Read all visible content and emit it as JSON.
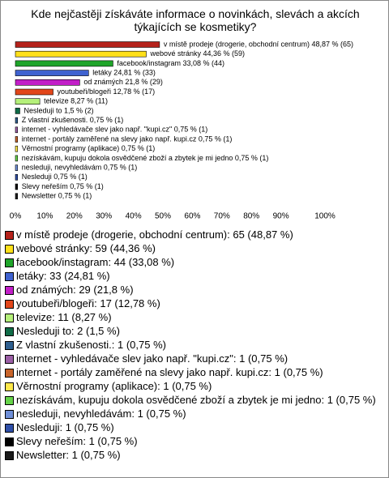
{
  "chart_data": {
    "type": "bar",
    "orientation": "horizontal",
    "title": "Kde nejčastěji získáváte informace o novinkách, slevách a akcích týkajících se kosmetiky?",
    "categories": [
      "v místě prodeje (drogerie, obchodní centrum)",
      "webové stránky",
      "facebook/instagram",
      "letáky",
      "od známých",
      "youtubeři/blogeři",
      "televize",
      "Nesleduji to",
      "Z vlastní zkušenosti.",
      "internet - vyhledávače slev jako např. \"kupi.cz\"",
      "internet - portály zaměřené na slevy jako např. kupi.cz",
      "Věrnostní programy (aplikace)",
      "nezískávám, kupuju dokola osvědčené zboží a zbytek je mi jedno",
      "nesleduji, nevyhledávám",
      "Nesleduji",
      "Slevy neřeším",
      "Newsletter"
    ],
    "values": [
      48.87,
      44.36,
      33.08,
      24.81,
      21.8,
      12.78,
      8.27,
      1.5,
      0.75,
      0.75,
      0.75,
      0.75,
      0.75,
      0.75,
      0.75,
      0.75,
      0.75
    ],
    "value_labels": [
      "v místě prodeje (drogerie, obchodní centrum) 48,87 % (65)",
      "webové stránky 44,36 % (59)",
      "facebook/instagram 33,08 % (44)",
      "letáky 24,81 % (33)",
      "od známých 21,8 % (29)",
      "youtubeři/blogeři 12,78 % (17)",
      "televize 8,27 % (11)",
      "Nesleduji to 1,5 % (2)",
      "Z vlastní zkušenosti. 0,75 % (1)",
      "internet - vyhledávače slev jako např. \"kupi.cz\" 0,75 % (1)",
      "internet - portály zaměřené na slevy jako např. kupi.cz 0,75 % (1)",
      "Věrnostní programy (aplikace) 0,75 % (1)",
      "nezískávám, kupuju dokola osvědčené zboží a zbytek je mi jedno 0,75 % (1)",
      "nesleduji, nevyhledávám 0,75 % (1)",
      "Nesleduji 0,75 % (1)",
      "Slevy neřeším 0,75 % (1)",
      "Newsletter 0,75 % (1)"
    ],
    "legend_labels": [
      "v místě prodeje (drogerie, obchodní centrum): 65 (48,87 %)",
      "webové stránky: 59 (44,36 %)",
      "facebook/instagram: 44 (33,08 %)",
      "letáky: 33 (24,81 %)",
      "od známých: 29 (21,8 %)",
      "youtubeři/blogeři: 17 (12,78 %)",
      "televize: 11 (8,27 %)",
      "Nesleduji to: 2 (1,5 %)",
      "Z vlastní zkušenosti.: 1 (0,75 %)",
      "internet - vyhledávače slev jako např. \"kupi.cz\": 1 (0,75 %)",
      "internet - portály zaměřené na slevy jako např. kupi.cz: 1 (0,75 %)",
      "Věrnostní programy (aplikace): 1 (0,75 %)",
      "nezískávám, kupuju dokola osvědčené zboží a zbytek je mi jedno: 1 (0,75 %)",
      "nesleduji, nevyhledávám: 1 (0,75 %)",
      "Nesleduji: 1 (0,75 %)",
      "Slevy neřeším: 1 (0,75 %)",
      "Newsletter: 1 (0,75 %)"
    ],
    "colors": [
      "#b5221b",
      "#ffe01a",
      "#1fa52a",
      "#3f62d0",
      "#c21fc8",
      "#e2461a",
      "#b5f07a",
      "#0f6b47",
      "#2f5f8f",
      "#9b5fa6",
      "#c8642a",
      "#ffe84a",
      "#66d44a",
      "#6f8fd8",
      "#2f4fa8",
      "#000000",
      "#1a1a1a"
    ],
    "xlim": [
      0,
      100
    ],
    "xticks": [
      {
        "value": 0,
        "label": "0%"
      },
      {
        "value": 10,
        "label": "10%"
      },
      {
        "value": 20,
        "label": "20%"
      },
      {
        "value": 30,
        "label": "30%"
      },
      {
        "value": 40,
        "label": "40%"
      },
      {
        "value": 50,
        "label": "50%"
      },
      {
        "value": 60,
        "label": "60%"
      },
      {
        "value": 70,
        "label": "70%"
      },
      {
        "value": 80,
        "label": "80%"
      },
      {
        "value": 90,
        "label": "90%"
      },
      {
        "value": 100,
        "label": "100%"
      }
    ]
  }
}
